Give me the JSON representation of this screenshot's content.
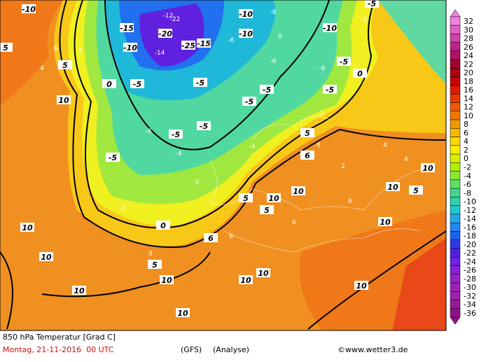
{
  "header": {
    "title": "850 hPa Temperatur [Grad C]",
    "date": "Montag, 21-11-2016  00 UTC",
    "model": "(GFS)",
    "run": "(Analyse)",
    "credit": "©www.wetter3.de"
  },
  "legend": {
    "levels": [
      32,
      30,
      28,
      26,
      24,
      22,
      20,
      18,
      16,
      14,
      12,
      10,
      8,
      6,
      4,
      2,
      0,
      -2,
      -4,
      -6,
      -8,
      -10,
      -12,
      -14,
      -16,
      -18,
      -20,
      -22,
      -24,
      -26,
      -28,
      -30,
      -32,
      -34,
      -36
    ],
    "colors": [
      "#f080e0",
      "#e060c8",
      "#d040a8",
      "#c02088",
      "#b01060",
      "#a00030",
      "#b00010",
      "#c80000",
      "#e01800",
      "#e83800",
      "#f05800",
      "#f07800",
      "#f09800",
      "#f8b800",
      "#f8d800",
      "#f8f000",
      "#d8f000",
      "#b0f000",
      "#88e830",
      "#60e060",
      "#40d888",
      "#30d0b0",
      "#20c8d0",
      "#20a8e8",
      "#2088f0",
      "#2060f0",
      "#3038e8",
      "#5020e0",
      "#7020e0",
      "#8820d8",
      "#9820c8",
      "#a020b8",
      "#a020a8",
      "#981898",
      "#901088"
    ]
  },
  "map": {
    "major_labels": [
      -10,
      -15,
      -20,
      -25,
      -15,
      -10,
      -5,
      -10,
      -5,
      -10,
      -5,
      -5,
      -5,
      -5,
      -10,
      -5,
      -5,
      -5,
      -5,
      5,
      10,
      5,
      0,
      0,
      0,
      5,
      10,
      10,
      10,
      10,
      10,
      10,
      10,
      10,
      10,
      5,
      10,
      6,
      10,
      10,
      5,
      5,
      6,
      5,
      10
    ],
    "minor_labels": [
      -2,
      -4,
      -6,
      -8,
      -2,
      -4,
      -6,
      -8,
      -12,
      -14,
      -22,
      2,
      4,
      6,
      8,
      2,
      4,
      6,
      6,
      8,
      -2,
      -6,
      2,
      4,
      6,
      6
    ]
  }
}
